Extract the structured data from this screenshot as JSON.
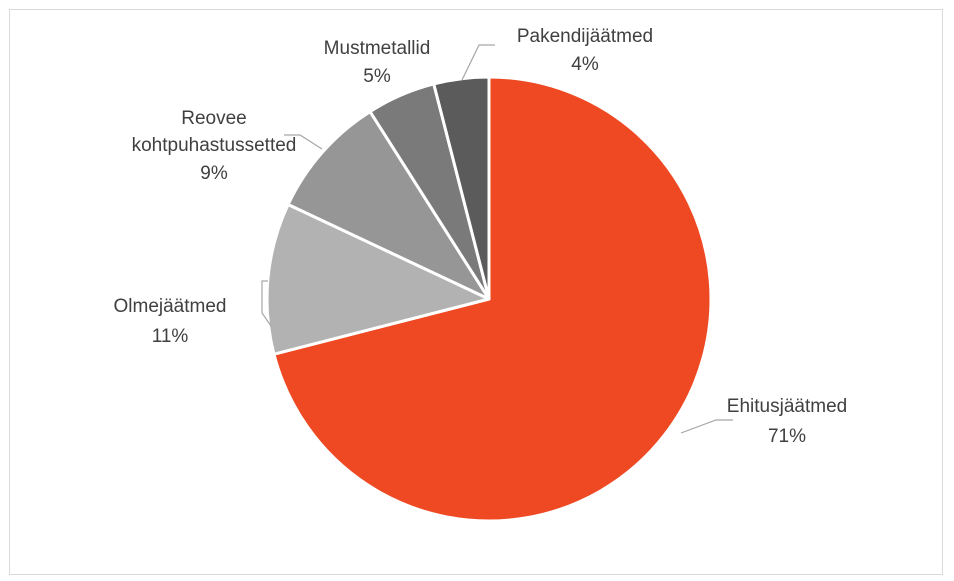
{
  "chart_data": {
    "type": "pie",
    "title": "",
    "slices": [
      {
        "name_lines": [
          "Ehitusjäätmed"
        ],
        "value": 71,
        "percent_label": "71%",
        "color": "#ef4923"
      },
      {
        "name_lines": [
          "Olmejäätmed"
        ],
        "value": 11,
        "percent_label": "11%",
        "color": "#b2b2b2"
      },
      {
        "name_lines": [
          "Reovee",
          "kohtpuhastussetted"
        ],
        "value": 9,
        "percent_label": "9%",
        "color": "#969696"
      },
      {
        "name_lines": [
          "Mustmetallid"
        ],
        "value": 5,
        "percent_label": "5%",
        "color": "#7a7a7a"
      },
      {
        "name_lines": [
          "Pakendijäätmed"
        ],
        "value": 4,
        "percent_label": "4%",
        "color": "#5b5b5b"
      }
    ],
    "start_angle": "12 o'clock",
    "direction": "clockwise",
    "legend": "none",
    "data_labels": "outside with leader lines"
  }
}
